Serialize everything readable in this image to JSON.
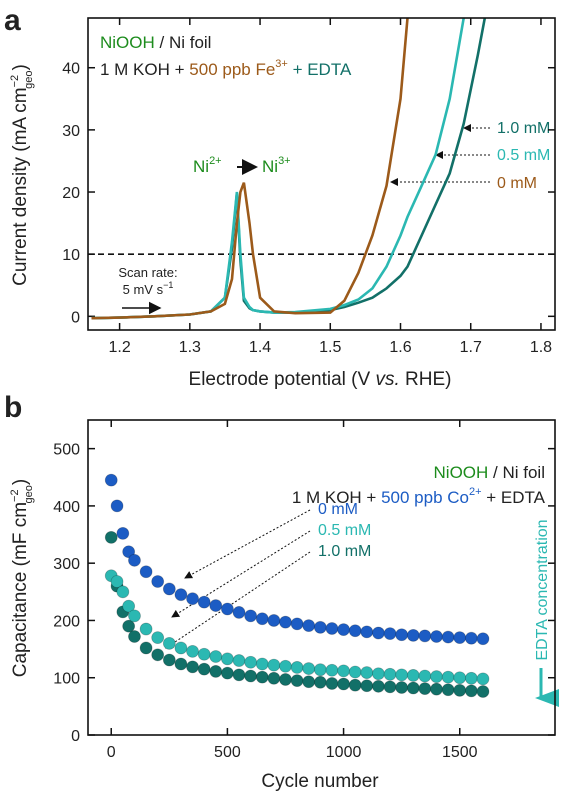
{
  "chart_data": [
    {
      "type": "line",
      "panel": "a",
      "x": [
        1.16,
        1.2,
        1.25,
        1.3,
        1.33,
        1.35,
        1.36,
        1.367,
        1.372,
        1.377,
        1.385,
        1.39,
        1.4,
        1.42,
        1.45,
        1.5,
        1.52,
        1.54,
        1.56,
        1.58,
        1.6,
        1.61,
        1.63,
        1.65,
        1.67,
        1.69,
        1.71,
        1.72
      ],
      "series": [
        {
          "name": "0 mM",
          "color": "#9c5a1a",
          "values": [
            -0.3,
            -0.2,
            0,
            0.3,
            0.8,
            2,
            6,
            15,
            20,
            21.5,
            15,
            10,
            3,
            0.8,
            0.5,
            0.6,
            2.5,
            7,
            13,
            21,
            35,
            48,
            null,
            null,
            null,
            null,
            null,
            null
          ]
        },
        {
          "name": "0.5 mM",
          "color": "#2bb8b2",
          "values": [
            -0.3,
            -0.2,
            0,
            0.3,
            0.8,
            3,
            12,
            20,
            10,
            3,
            1.5,
            1,
            0.8,
            0.6,
            0.7,
            1.2,
            1.8,
            2.7,
            4.5,
            8,
            13,
            16,
            21,
            26,
            35,
            48,
            null,
            null
          ]
        },
        {
          "name": "1.0 mM",
          "color": "#127068",
          "values": [
            -0.3,
            -0.2,
            0,
            0.3,
            0.8,
            3,
            11,
            19.8,
            9,
            2.5,
            1.3,
            1,
            0.8,
            0.6,
            0.6,
            1,
            1.5,
            2.2,
            3,
            4.5,
            6.5,
            8,
            13,
            18,
            23,
            31,
            42,
            48
          ]
        }
      ],
      "xlim": [
        1.155,
        1.82
      ],
      "ylim": [
        -2.2,
        48
      ],
      "xticks": [
        1.2,
        1.3,
        1.4,
        1.5,
        1.6,
        1.7,
        1.8
      ],
      "yticks": [
        0,
        10,
        20,
        30,
        40
      ],
      "hline": 10,
      "xlabel": [
        "Electrode potential (V ",
        "vs.",
        " RHE)"
      ],
      "ylabel": [
        "Current density (mA cm",
        "−2",
        "geo",
        ")"
      ],
      "legend_line1": [
        "NiOOH",
        " / Ni foil"
      ],
      "legend_line2": [
        "1 M KOH + ",
        "500 ppb Fe",
        "3+",
        " + EDTA"
      ],
      "peak_label": [
        "Ni",
        "2+",
        "Ni",
        "3+"
      ],
      "scan_rate": [
        "Scan rate:",
        "5 mV s",
        "−1"
      ]
    },
    {
      "type": "scatter",
      "panel": "b",
      "x": [
        0,
        25,
        50,
        75,
        100,
        150,
        200,
        250,
        300,
        350,
        400,
        450,
        500,
        550,
        600,
        650,
        700,
        750,
        800,
        850,
        900,
        950,
        1000,
        1050,
        1100,
        1150,
        1200,
        1250,
        1300,
        1350,
        1400,
        1450,
        1500,
        1550,
        1600
      ],
      "series": [
        {
          "name": "0 mM",
          "color": "#1c5cc4",
          "values": [
            445,
            400,
            352,
            320,
            305,
            285,
            268,
            255,
            245,
            238,
            232,
            226,
            220,
            214,
            208,
            203,
            200,
            197,
            194,
            191,
            188,
            186,
            184,
            182,
            180,
            178,
            177,
            175,
            174,
            173,
            172,
            171,
            170,
            169,
            168
          ]
        },
        {
          "name": "0.5 mM",
          "color": "#2bb8b2",
          "values": [
            278,
            268,
            250,
            225,
            208,
            185,
            170,
            160,
            152,
            146,
            141,
            137,
            133,
            130,
            127,
            124,
            122,
            120,
            118,
            116,
            114,
            113,
            112,
            110,
            109,
            107,
            106,
            105,
            104,
            103,
            102,
            101,
            100,
            99,
            98
          ]
        },
        {
          "name": "1.0 mM",
          "color": "#127068",
          "values": [
            345,
            260,
            215,
            190,
            172,
            152,
            140,
            131,
            124,
            119,
            115,
            111,
            108,
            105,
            103,
            101,
            99,
            97,
            95,
            93,
            92,
            90,
            89,
            87,
            86,
            85,
            84,
            83,
            82,
            81,
            80,
            79,
            78,
            77,
            76
          ]
        }
      ],
      "xlim": [
        -100,
        1910
      ],
      "ylim": [
        0,
        550
      ],
      "xticks": [
        0,
        500,
        1000,
        1500
      ],
      "yticks": [
        0,
        100,
        200,
        300,
        400,
        500
      ],
      "xlabel": [
        "Cycle number"
      ],
      "ylabel": [
        "Capacitance (mF cm",
        "−2",
        "geo",
        ")"
      ],
      "legend_line1": [
        "NiOOH",
        " / Ni foil"
      ],
      "legend_line2": [
        "1 M KOH + ",
        "500 ppb Co",
        "2+",
        " + EDTA"
      ],
      "side_label": "EDTA concentration"
    }
  ]
}
